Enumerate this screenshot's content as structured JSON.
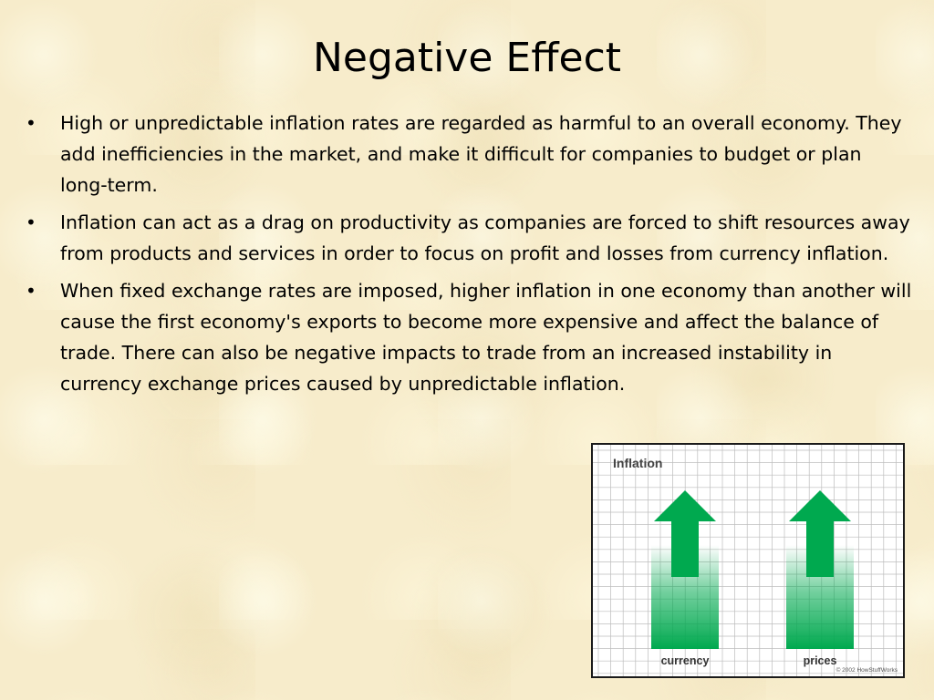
{
  "slide": {
    "title": "Negative Effect",
    "bullet_mark": "•",
    "bullets": [
      "High or unpredictable inflation rates are regarded as harmful to an overall economy. They add inefficiencies in the market, and make it difficult for companies to budget or plan long-term.",
      "Inflation can act as a drag on productivity as companies are forced to shift resources away from products and services in order to focus on profit and losses from currency inflation.",
      "When fixed exchange rates are imposed, higher inflation in one economy than another will cause the first economy's exports to become more expensive and affect the balance of trade. There can also be negative impacts to trade from an increased instability in currency exchange prices caused by unpredictable inflation."
    ]
  },
  "figure": {
    "title": "Inflation",
    "labels": [
      "currency",
      "prices"
    ],
    "copyright": "© 2002 HowStuffWorks",
    "arrow_color": "#00a94f",
    "grid_color": "#bdbdbd",
    "arrow_icon": "up-arrow-icon"
  }
}
